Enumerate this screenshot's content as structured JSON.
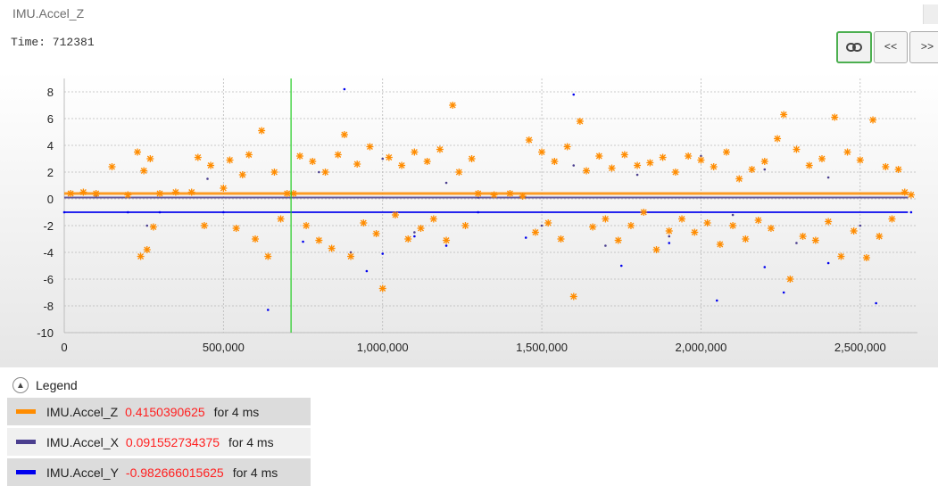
{
  "window": {
    "title": "IMU.Accel_Z"
  },
  "time_readout": "Time: 712381",
  "toolbar": {
    "link_icon": "link-icon",
    "prev_label": "<<",
    "next_label": ">>"
  },
  "colors": {
    "z": "#ff8c00",
    "x": "#4b3f8f",
    "y": "#0000ee",
    "cursor": "#22cc22",
    "value": "#ff2020"
  },
  "legend": {
    "header": "Legend",
    "items": [
      {
        "name": "IMU.Accel_Z",
        "value": "0.4150390625",
        "duration": "for 4 ms"
      },
      {
        "name": "IMU.Accel_X",
        "value": "0.091552734375",
        "duration": "for 4 ms"
      },
      {
        "name": "IMU.Accel_Y",
        "value": "-0.982666015625",
        "duration": "for 4 ms"
      }
    ]
  },
  "chart_data": {
    "type": "scatter",
    "xlim": [
      0,
      2680000
    ],
    "ylim": [
      -10,
      9
    ],
    "x_ticks": [
      0,
      500000,
      1000000,
      1500000,
      2000000,
      2500000
    ],
    "x_tick_labels": [
      "0",
      "500,000",
      "1,000,000",
      "1,500,000",
      "2,000,000",
      "2,500,000"
    ],
    "y_ticks": [
      8,
      6,
      4,
      2,
      0,
      -2,
      -4,
      -6,
      -8,
      -10
    ],
    "y_tick_labels": [
      "8",
      "6",
      "4",
      "2",
      "0",
      "-2",
      "-4",
      "-6",
      "-8",
      "-10"
    ],
    "grid": true,
    "cursor_x": 712381,
    "series": [
      {
        "name": "IMU.Accel_Z",
        "marker": "asterisk",
        "baseline": 0.4,
        "x": [
          20000,
          60000,
          100000,
          150000,
          200000,
          230000,
          240000,
          250000,
          260000,
          270000,
          280000,
          300000,
          350000,
          400000,
          420000,
          440000,
          460000,
          500000,
          520000,
          540000,
          560000,
          580000,
          600000,
          620000,
          640000,
          660000,
          680000,
          700000,
          720000,
          740000,
          760000,
          780000,
          800000,
          820000,
          840000,
          860000,
          880000,
          900000,
          920000,
          940000,
          960000,
          980000,
          1000000,
          1020000,
          1040000,
          1060000,
          1080000,
          1100000,
          1120000,
          1140000,
          1160000,
          1180000,
          1200000,
          1220000,
          1240000,
          1260000,
          1280000,
          1300000,
          1350000,
          1400000,
          1440000,
          1460000,
          1480000,
          1500000,
          1520000,
          1540000,
          1560000,
          1580000,
          1600000,
          1620000,
          1640000,
          1660000,
          1680000,
          1700000,
          1720000,
          1740000,
          1760000,
          1780000,
          1800000,
          1820000,
          1840000,
          1860000,
          1880000,
          1900000,
          1920000,
          1940000,
          1960000,
          1980000,
          2000000,
          2020000,
          2040000,
          2060000,
          2080000,
          2100000,
          2120000,
          2140000,
          2160000,
          2180000,
          2200000,
          2220000,
          2240000,
          2260000,
          2280000,
          2300000,
          2320000,
          2340000,
          2360000,
          2380000,
          2400000,
          2420000,
          2440000,
          2460000,
          2480000,
          2500000,
          2520000,
          2540000,
          2560000,
          2580000,
          2600000,
          2620000,
          2640000,
          2660000
        ],
        "y": [
          0.4,
          0.5,
          0.4,
          2.4,
          0.3,
          3.5,
          -4.3,
          2.1,
          -3.8,
          3.0,
          -2.1,
          0.4,
          0.5,
          0.5,
          3.1,
          -2.0,
          2.5,
          0.8,
          2.9,
          -2.2,
          1.8,
          3.3,
          -3.0,
          5.1,
          -4.3,
          2.0,
          -1.5,
          0.4,
          0.4,
          3.2,
          -2.0,
          2.8,
          -3.1,
          2.0,
          -3.7,
          3.3,
          4.8,
          -4.3,
          2.6,
          -1.8,
          3.9,
          -2.6,
          -6.7,
          3.1,
          -1.2,
          2.5,
          -3.0,
          3.5,
          -2.2,
          2.8,
          -1.5,
          3.7,
          -3.1,
          7.0,
          2.0,
          -2.0,
          3.0,
          0.4,
          0.3,
          0.4,
          0.2,
          4.4,
          -2.5,
          3.5,
          -1.8,
          2.8,
          -3.0,
          3.9,
          -7.3,
          5.8,
          2.1,
          -2.1,
          3.2,
          -1.5,
          2.3,
          -3.1,
          3.3,
          -2.0,
          2.5,
          -1.0,
          2.7,
          -3.8,
          3.1,
          -2.4,
          2.0,
          -1.5,
          3.2,
          -2.5,
          2.9,
          -1.8,
          2.4,
          -3.4,
          3.5,
          -2.0,
          1.5,
          -3.0,
          2.2,
          -1.6,
          2.8,
          -2.2,
          4.5,
          6.3,
          -6.0,
          3.7,
          -2.8,
          2.5,
          -3.1,
          3.0,
          -1.7,
          6.1,
          -4.3,
          3.5,
          -2.4,
          2.9,
          -4.4,
          5.9,
          -2.8,
          2.4,
          -1.5,
          2.2,
          0.5,
          0.3
        ]
      },
      {
        "name": "IMU.Accel_X",
        "marker": "dot",
        "baseline": 0.1,
        "x": [
          100000,
          260000,
          450000,
          600000,
          800000,
          900000,
          1000000,
          1100000,
          1200000,
          1300000,
          1500000,
          1600000,
          1700000,
          1800000,
          1900000,
          2000000,
          2100000,
          2200000,
          2300000,
          2400000,
          2500000
        ],
        "y": [
          0.2,
          -2.0,
          1.5,
          -3.0,
          2.0,
          -4.0,
          3.0,
          -2.5,
          1.2,
          0.1,
          -2.0,
          2.5,
          -3.5,
          1.8,
          -2.8,
          3.2,
          -1.2,
          2.2,
          -3.3,
          1.6,
          -2.0
        ]
      },
      {
        "name": "IMU.Accel_Y",
        "marker": "dot",
        "baseline": -1.0,
        "x": [
          0,
          200000,
          300000,
          500000,
          640000,
          750000,
          880000,
          950000,
          1000000,
          1100000,
          1200000,
          1300000,
          1450000,
          1600000,
          1750000,
          1900000,
          2050000,
          2200000,
          2260000,
          2400000,
          2550000,
          2660000
        ],
        "y": [
          -1.0,
          -1.0,
          -1.0,
          -1.0,
          -8.3,
          -3.2,
          8.2,
          -5.4,
          -4.1,
          -2.8,
          -3.5,
          -1.0,
          -2.9,
          7.8,
          -5.0,
          -3.3,
          -7.6,
          -5.1,
          -7.0,
          -4.8,
          -7.8,
          -1.0
        ]
      }
    ]
  }
}
